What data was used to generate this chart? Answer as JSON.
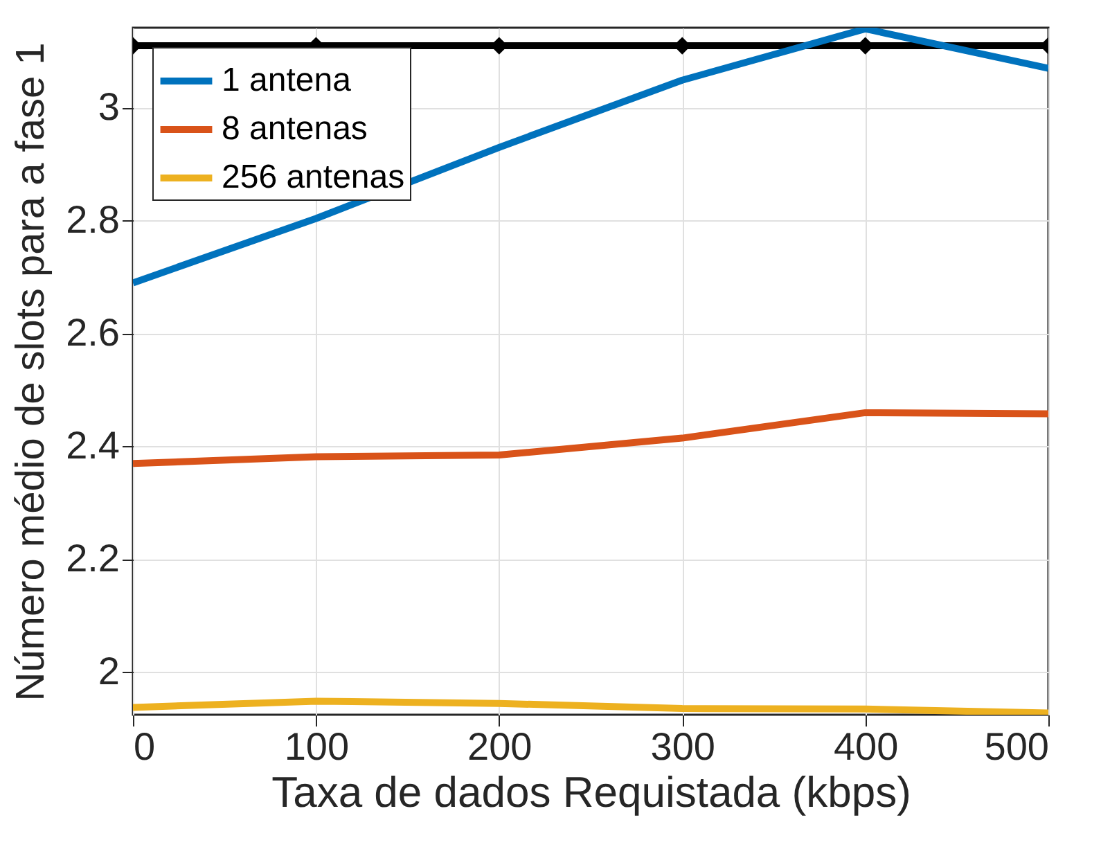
{
  "chart_data": {
    "type": "line",
    "xlabel": "Taxa de dados Requistada (kbps)",
    "ylabel": "Número médio de slots para a fase 1",
    "x": [
      0,
      100,
      200,
      300,
      400,
      500
    ],
    "series": [
      {
        "name": "1 antena",
        "color": "#0072bd",
        "values": [
          2.69,
          2.804,
          2.93,
          3.049,
          3.14,
          3.07
        ]
      },
      {
        "name": "8 antenas",
        "color": "#d95319",
        "values": [
          2.37,
          2.382,
          2.385,
          2.415,
          2.46,
          2.458
        ]
      },
      {
        "name": "256 antenas",
        "color": "#edb120",
        "values": [
          1.938,
          1.949,
          1.945,
          1.936,
          1.935,
          1.928
        ]
      },
      {
        "color": "#000000",
        "marker": "diamond",
        "values": [
          3.11,
          3.11,
          3.11,
          3.11,
          3.11,
          3.11
        ]
      }
    ],
    "xlim": [
      0,
      500
    ],
    "xticks": [
      0,
      100,
      200,
      300,
      400,
      500
    ],
    "ylim": [
      1.925,
      3.142
    ],
    "yticks": [
      {
        "value": 2,
        "label": "2"
      },
      2.2,
      2.4,
      2.6,
      2.8,
      {
        "value": 3,
        "label": "3"
      }
    ],
    "grid": true,
    "legend": "top left",
    "line_style": "solid"
  }
}
